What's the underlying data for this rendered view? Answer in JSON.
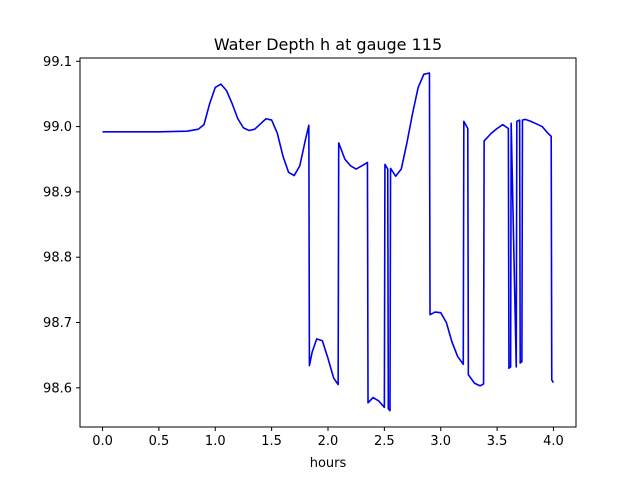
{
  "chart_data": {
    "type": "line",
    "title": "Water Depth h at gauge 115",
    "xlabel": "hours",
    "ylabel": "",
    "xlim": [
      -0.2,
      4.2
    ],
    "ylim": [
      98.54,
      99.105
    ],
    "xticks": [
      0.0,
      0.5,
      1.0,
      1.5,
      2.0,
      2.5,
      3.0,
      3.5,
      4.0
    ],
    "xtick_labels": [
      "0.0",
      "0.5",
      "1.0",
      "1.5",
      "2.0",
      "2.5",
      "3.0",
      "3.5",
      "4.0"
    ],
    "yticks": [
      98.6,
      98.7,
      98.8,
      98.9,
      99.0,
      99.1
    ],
    "ytick_labels": [
      "98.6",
      "98.7",
      "98.8",
      "98.9",
      "99.0",
      "99.1"
    ],
    "grid": false,
    "color": "#0000ee",
    "series": [
      {
        "x": [
          0.0,
          0.5,
          0.75,
          0.85,
          0.9,
          0.95,
          1.0,
          1.05,
          1.1,
          1.15,
          1.2,
          1.25,
          1.3,
          1.35,
          1.4,
          1.45,
          1.5,
          1.55,
          1.6,
          1.65,
          1.7,
          1.75,
          1.8,
          1.83,
          1.835,
          1.86,
          1.9,
          1.95,
          2.0,
          2.05,
          2.09,
          2.095,
          2.15,
          2.2,
          2.25,
          2.3,
          2.35,
          2.355,
          2.4,
          2.45,
          2.5,
          2.505,
          2.53,
          2.535,
          2.55,
          2.555,
          2.6,
          2.65,
          2.7,
          2.75,
          2.8,
          2.85,
          2.9,
          2.905,
          2.95,
          3.0,
          3.05,
          3.1,
          3.15,
          3.2,
          3.205,
          3.24,
          3.245,
          3.3,
          3.35,
          3.38,
          3.385,
          3.45,
          3.5,
          3.55,
          3.6,
          3.605,
          3.62,
          3.625,
          3.67,
          3.675,
          3.7,
          3.705,
          3.72,
          3.725,
          3.75,
          3.8,
          3.85,
          3.9,
          3.95,
          3.98,
          3.985,
          4.0
        ],
        "y": [
          98.992,
          98.992,
          98.993,
          98.996,
          99.003,
          99.035,
          99.06,
          99.065,
          99.055,
          99.035,
          99.012,
          98.998,
          98.994,
          98.996,
          99.004,
          99.012,
          99.01,
          98.99,
          98.955,
          98.93,
          98.925,
          98.94,
          98.98,
          99.002,
          98.634,
          98.655,
          98.675,
          98.672,
          98.645,
          98.615,
          98.605,
          98.975,
          98.95,
          98.94,
          98.935,
          98.94,
          98.945,
          98.577,
          98.585,
          98.58,
          98.57,
          98.942,
          98.935,
          98.568,
          98.565,
          98.936,
          98.924,
          98.935,
          98.975,
          99.02,
          99.06,
          99.08,
          99.082,
          98.712,
          98.716,
          98.715,
          98.7,
          98.67,
          98.648,
          98.636,
          99.008,
          98.997,
          98.62,
          98.607,
          98.603,
          98.606,
          98.978,
          98.99,
          98.997,
          99.003,
          98.997,
          98.63,
          98.632,
          99.005,
          98.632,
          99.008,
          99.01,
          98.638,
          98.64,
          99.01,
          99.011,
          99.008,
          99.004,
          99.0,
          98.99,
          98.985,
          98.612,
          98.608
        ]
      }
    ]
  }
}
